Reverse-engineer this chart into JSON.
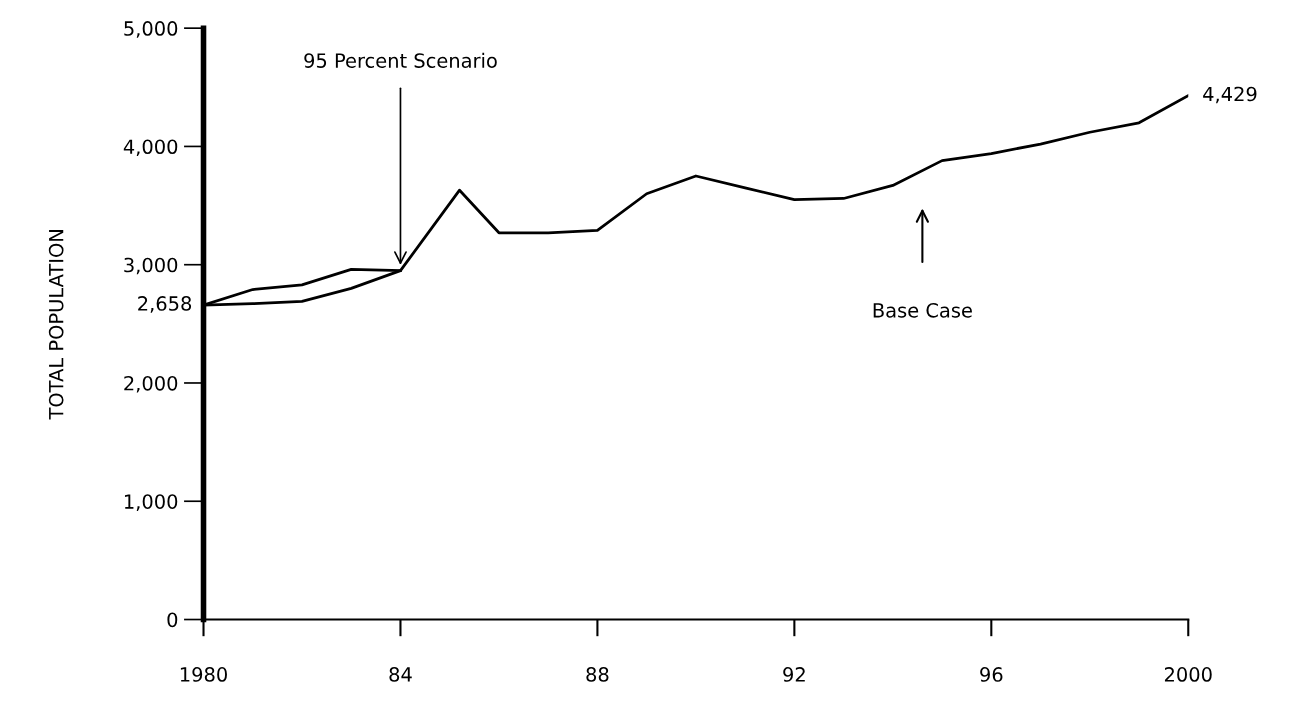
{
  "chart_data": {
    "type": "line",
    "ylabel": "TOTAL POPULATION",
    "x": [
      1980,
      1981,
      1982,
      1983,
      1984,
      1985.2,
      1986,
      1987,
      1988,
      1989,
      1990,
      1991,
      1992,
      1993,
      1994,
      1995,
      1996,
      1997,
      1998,
      1999,
      2000
    ],
    "series": [
      {
        "color": "#000000",
        "values": [
          2658,
          2670,
          2690,
          2800,
          2950,
          3630,
          3270,
          3270,
          3290,
          3600,
          3750,
          3650,
          3550,
          3560,
          3670,
          3880,
          3940,
          4020,
          4120,
          4200,
          4429
        ],
        "value_labels": [
          "2,658",
          null,
          null,
          null,
          null,
          null,
          null,
          null,
          null,
          null,
          null,
          null,
          null,
          null,
          null,
          null,
          null,
          null,
          null,
          null,
          "4,429"
        ]
      },
      {
        "color": "#000000",
        "x": [
          1980,
          1981,
          1982,
          1983,
          1984
        ],
        "values": [
          2658,
          2790,
          2830,
          2960,
          2950
        ]
      }
    ],
    "xlim": [
      1980,
      2000
    ],
    "xticks": [
      {
        "value": 1980,
        "label": "1980"
      },
      {
        "value": 1984,
        "label": "84"
      },
      {
        "value": 1988,
        "label": "88"
      },
      {
        "value": 1992,
        "label": "92"
      },
      {
        "value": 1996,
        "label": "96"
      },
      {
        "value": 2000,
        "label": "2000"
      }
    ],
    "ylim": [
      0,
      5000
    ],
    "yticks": [
      {
        "value": 0,
        "label": "0"
      },
      {
        "value": 1000,
        "label": "1,000"
      },
      {
        "value": 2000,
        "label": "2,000"
      },
      {
        "value": 3000,
        "label": "3,000"
      },
      {
        "value": 4000,
        "label": "4,000"
      },
      {
        "value": 5000,
        "label": "5,000"
      }
    ],
    "annotations": [
      {
        "text": "95 Percent Scenario",
        "x": 1984,
        "y": 2950
      },
      "Base Case"
    ],
    "grid": false,
    "legend": false,
    "line_style": "solid",
    "marker": "none"
  }
}
